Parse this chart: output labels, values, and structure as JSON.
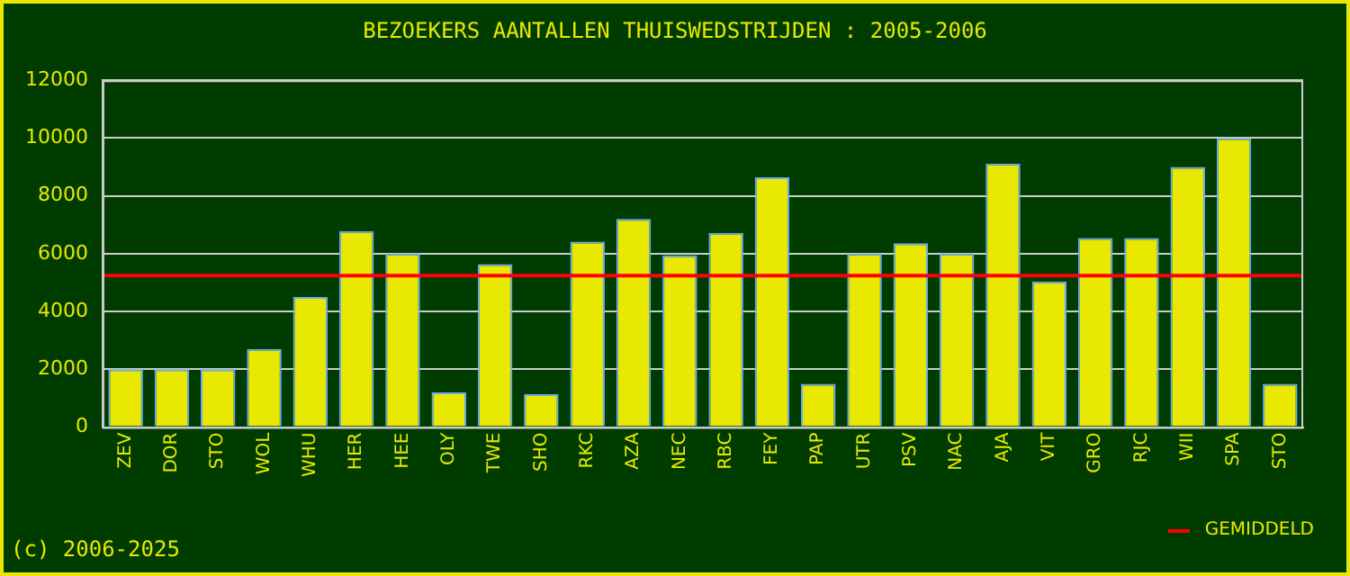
{
  "chart_data": {
    "type": "bar",
    "title": "BEZOEKERS AANTALLEN THUISWEDSTRIJDEN : 2005-2006",
    "categories": [
      "ZEV",
      "DOR",
      "STO",
      "WOL",
      "WHU",
      "HER",
      "HEE",
      "OLY",
      "TWE",
      "SHO",
      "RKC",
      "AZA",
      "NEC",
      "RBC",
      "FEY",
      "PAP",
      "UTR",
      "PSV",
      "NAC",
      "AJA",
      "VIT",
      "GRO",
      "RJC",
      "WII",
      "SPA",
      "STO"
    ],
    "values": [
      2000,
      2000,
      2000,
      2700,
      4500,
      6780,
      6000,
      1200,
      5640,
      1140,
      6420,
      7200,
      5940,
      6720,
      8640,
      1500,
      6000,
      6360,
      6000,
      9120,
      5040,
      6540,
      6540,
      9000,
      10000,
      1500
    ],
    "color": "#e8e800",
    "ylim": [
      0,
      12000
    ],
    "yticks": [
      0,
      2000,
      4000,
      6000,
      8000,
      10000,
      12000
    ],
    "grid": "y",
    "ref_lines": [
      {
        "axis": "y",
        "value": 5240,
        "label": "GEMIDDELD",
        "color": "#ff0000"
      }
    ],
    "legend": "bottom right",
    "annotations": [
      "(c) 2006-2025"
    ]
  }
}
